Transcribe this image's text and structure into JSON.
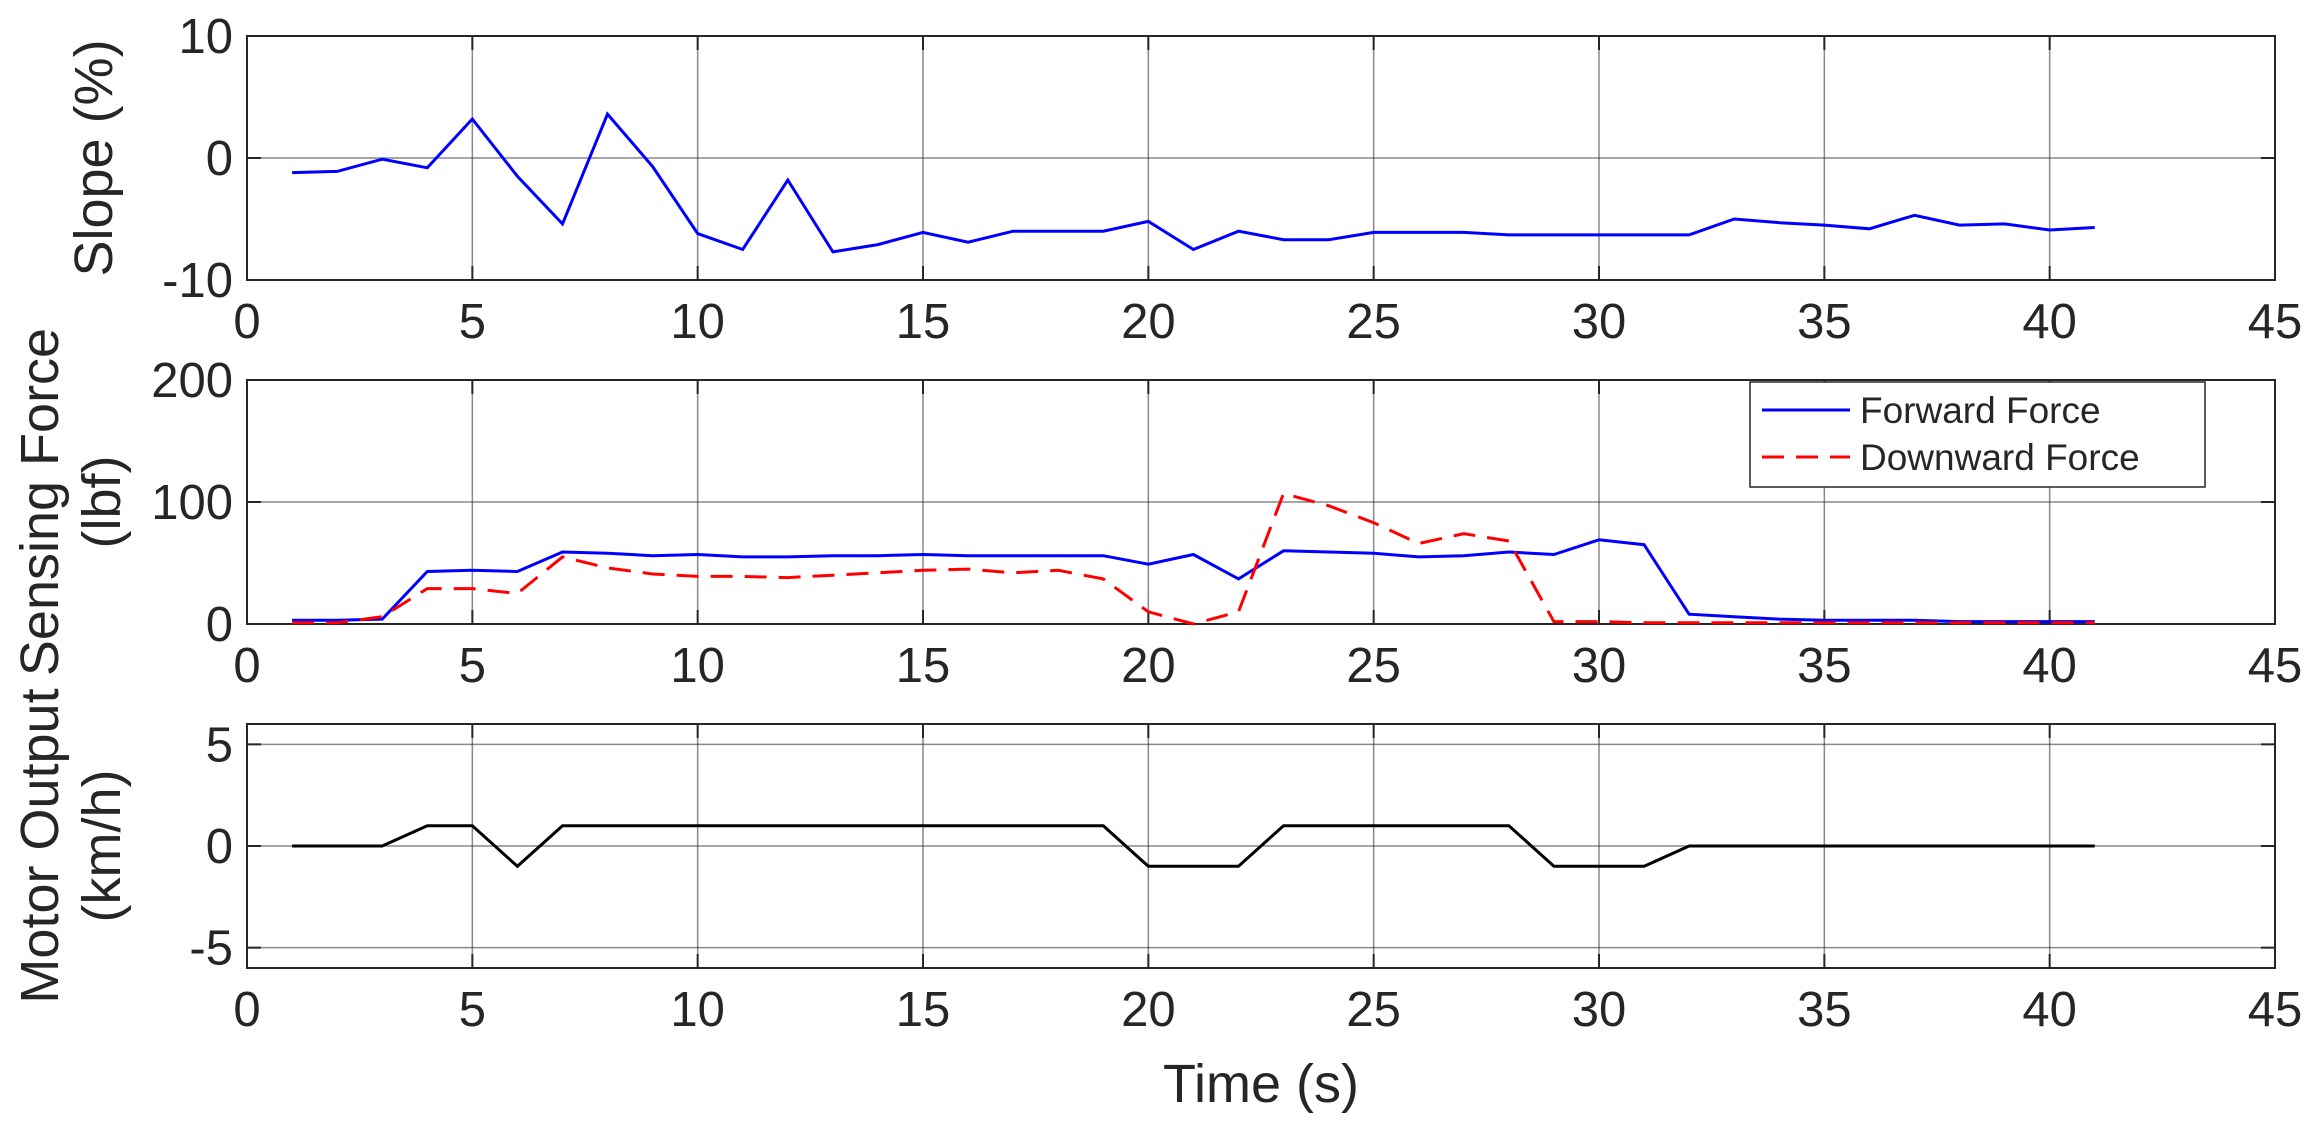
{
  "chart_data": [
    {
      "type": "line",
      "ylabel": [
        "Slope (%)"
      ],
      "xlim": [
        0,
        45
      ],
      "ylim": [
        -10,
        10
      ],
      "xticks": [
        "0",
        "5",
        "10",
        "15",
        "20",
        "25",
        "30",
        "35",
        "40",
        "45"
      ],
      "yticks": [
        "-10",
        "0",
        "10"
      ],
      "grid": true,
      "x": [
        1,
        2,
        3,
        4,
        5,
        6,
        7,
        8,
        9,
        10,
        11,
        12,
        13,
        14,
        15,
        16,
        17,
        18,
        19,
        20,
        21,
        22,
        23,
        24,
        25,
        26,
        27,
        28,
        29,
        30,
        31,
        32,
        33,
        34,
        35,
        36,
        37,
        38,
        39,
        40,
        41
      ],
      "series": [
        {
          "color": "#0000ff",
          "style": "solid",
          "values": [
            -1.2,
            -1.1,
            -0.1,
            -0.8,
            3.2,
            -1.5,
            -5.4,
            3.6,
            -0.7,
            -6.2,
            -7.5,
            -1.8,
            -7.7,
            -7.1,
            -6.1,
            -6.9,
            -6.0,
            -6.0,
            -6.0,
            -5.2,
            -7.5,
            -6.0,
            -6.7,
            -6.7,
            -6.1,
            -6.1,
            -6.1,
            -6.3,
            -6.3,
            -6.3,
            -6.3,
            -6.3,
            -5.0,
            -5.3,
            -5.5,
            -5.8,
            -4.7,
            -5.5,
            -5.4,
            -5.9,
            -5.7
          ]
        }
      ]
    },
    {
      "type": "line",
      "ylabel": [
        "Sensing Force",
        "(lbf)"
      ],
      "xlim": [
        0,
        45
      ],
      "ylim": [
        0,
        200
      ],
      "xticks": [
        "0",
        "5",
        "10",
        "15",
        "20",
        "25",
        "30",
        "35",
        "40",
        "45"
      ],
      "yticks": [
        "0",
        "100",
        "200"
      ],
      "grid": true,
      "legend": "top-right",
      "x": [
        1,
        2,
        3,
        4,
        5,
        6,
        7,
        8,
        9,
        10,
        11,
        12,
        13,
        14,
        15,
        16,
        17,
        18,
        19,
        20,
        21,
        22,
        23,
        24,
        25,
        26,
        27,
        28,
        29,
        30,
        31,
        32,
        33,
        34,
        35,
        36,
        37,
        38,
        39,
        40,
        41
      ],
      "series": [
        {
          "name": "Forward Force",
          "color": "#0000ff",
          "style": "solid",
          "values": [
            3,
            3,
            4,
            43,
            44,
            43,
            59,
            58,
            56,
            57,
            55,
            55,
            56,
            56,
            57,
            56,
            56,
            56,
            56,
            49,
            57,
            37,
            60,
            59,
            58,
            55,
            56,
            59,
            57,
            69,
            65,
            8,
            6,
            4,
            3,
            3,
            3,
            2,
            2,
            2,
            2
          ]
        },
        {
          "name": "Downward Force",
          "color": "#ff0000",
          "style": "dashed",
          "values": [
            1,
            1,
            6,
            29,
            29,
            25,
            55,
            46,
            41,
            39,
            39,
            38,
            40,
            42,
            44,
            45,
            42,
            44,
            37,
            10,
            0,
            10,
            107,
            97,
            83,
            66,
            74,
            68,
            2,
            2,
            1,
            1,
            1,
            1,
            1,
            1,
            1,
            1,
            1,
            1,
            1
          ]
        }
      ]
    },
    {
      "type": "line",
      "ylabel": [
        "Motor Output",
        "(km/h)"
      ],
      "xlabel": "Time (s)",
      "xlim": [
        0,
        45
      ],
      "ylim": [
        -6,
        6
      ],
      "xticks": [
        "0",
        "5",
        "10",
        "15",
        "20",
        "25",
        "30",
        "35",
        "40",
        "45"
      ],
      "yticks": [
        "-5",
        "0",
        "5"
      ],
      "grid": true,
      "x": [
        1,
        2,
        3,
        4,
        5,
        6,
        7,
        8,
        9,
        10,
        11,
        12,
        13,
        14,
        15,
        16,
        17,
        18,
        19,
        20,
        21,
        22,
        23,
        24,
        25,
        26,
        27,
        28,
        29,
        30,
        31,
        32,
        33,
        34,
        35,
        36,
        37,
        38,
        39,
        40,
        41
      ],
      "series": [
        {
          "color": "#000000",
          "style": "solid",
          "values": [
            0,
            0,
            0,
            1,
            1,
            -1,
            1,
            1,
            1,
            1,
            1,
            1,
            1,
            1,
            1,
            1,
            1,
            1,
            1,
            -1,
            -1,
            -1,
            1,
            1,
            1,
            1,
            1,
            1,
            -1,
            -1,
            -1,
            0,
            0,
            0,
            0,
            0,
            0,
            0,
            0,
            0,
            0
          ]
        }
      ]
    }
  ]
}
